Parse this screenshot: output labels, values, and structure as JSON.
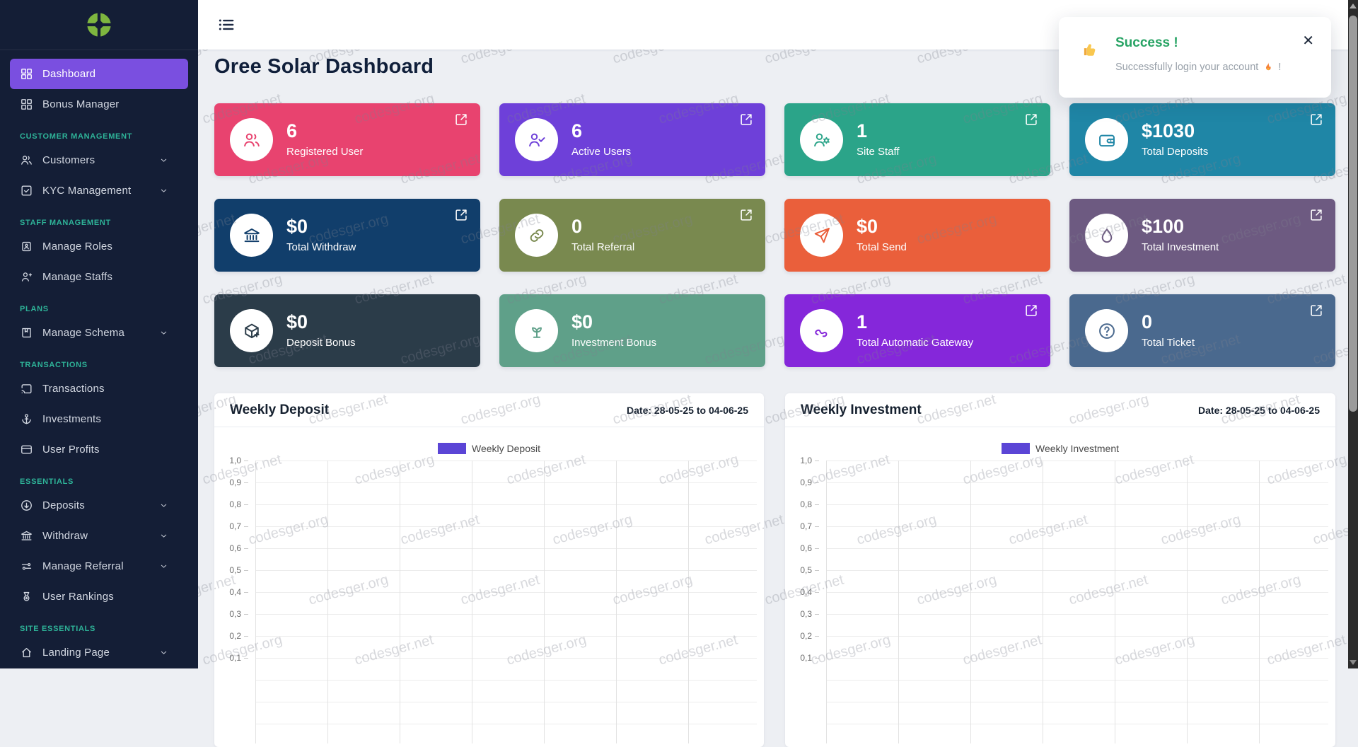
{
  "app": {
    "page_title": "Oree Solar Dashboard"
  },
  "topbar": {
    "menu_icon": "list-icon"
  },
  "toast": {
    "emoji_icon": "thumbs-up-icon",
    "title": "Success !",
    "message_prefix": "Successfully login your account",
    "fire_icon": "fire-icon",
    "message_suffix": "!",
    "close_glyph": "✕",
    "accent_color": "#27A364"
  },
  "sidebar": {
    "logo_icon": "oree-solar-logo",
    "colors": {
      "background": "#141E36",
      "active": "#7A4FE0",
      "section": "#2EB398",
      "text": "#D3D8E2"
    },
    "groups": [
      {
        "header": null,
        "items": [
          {
            "label": "Dashboard",
            "icon": "grid-icon",
            "active": true,
            "chevron": false
          },
          {
            "label": "Bonus Manager",
            "icon": "grid-icon",
            "active": false,
            "chevron": false
          }
        ]
      },
      {
        "header": "CUSTOMER MANAGEMENT",
        "items": [
          {
            "label": "Customers",
            "icon": "users-icon",
            "active": false,
            "chevron": true
          },
          {
            "label": "KYC Management",
            "icon": "check-square-icon",
            "active": false,
            "chevron": true
          }
        ]
      },
      {
        "header": "STAFF MANAGEMENT",
        "items": [
          {
            "label": "Manage Roles",
            "icon": "id-badge-icon",
            "active": false,
            "chevron": false
          },
          {
            "label": "Manage Staffs",
            "icon": "user-plus-icon",
            "active": false,
            "chevron": false
          }
        ]
      },
      {
        "header": "PLANS",
        "items": [
          {
            "label": "Manage Schema",
            "icon": "book-icon",
            "active": false,
            "chevron": true
          }
        ]
      },
      {
        "header": "TRANSACTIONS",
        "items": [
          {
            "label": "Transactions",
            "icon": "cast-icon",
            "active": false,
            "chevron": false
          },
          {
            "label": "Investments",
            "icon": "anchor-icon",
            "active": false,
            "chevron": false
          },
          {
            "label": "User Profits",
            "icon": "credit-card-icon",
            "active": false,
            "chevron": false
          }
        ]
      },
      {
        "header": "ESSENTIALS",
        "items": [
          {
            "label": "Deposits",
            "icon": "arrow-down-circle-icon",
            "active": false,
            "chevron": true
          },
          {
            "label": "Withdraw",
            "icon": "bank-icon",
            "active": false,
            "chevron": true
          },
          {
            "label": "Manage Referral",
            "icon": "sliders-icon",
            "active": false,
            "chevron": true
          },
          {
            "label": "User Rankings",
            "icon": "medal-icon",
            "active": false,
            "chevron": false
          }
        ]
      },
      {
        "header": "SITE ESSENTIALS",
        "items": [
          {
            "label": "Landing Page",
            "icon": "home-icon",
            "active": false,
            "chevron": true
          }
        ]
      }
    ]
  },
  "stat_cards": [
    {
      "value": "6",
      "label": "Registered User",
      "icon": "users-icon",
      "color": "#E8436F",
      "external_link": true
    },
    {
      "value": "6",
      "label": "Active Users",
      "icon": "user-check-icon",
      "color": "#6E40D9",
      "external_link": true
    },
    {
      "value": "1",
      "label": "Site Staff",
      "icon": "user-gear-icon",
      "color": "#2BA489",
      "external_link": true
    },
    {
      "value": "$1030",
      "label": "Total Deposits",
      "icon": "wallet-icon",
      "color": "#1F86A6",
      "external_link": true
    },
    {
      "value": "$0",
      "label": "Total Withdraw",
      "icon": "bank-icon",
      "color": "#113E6B",
      "external_link": true
    },
    {
      "value": "0",
      "label": "Total Referral",
      "icon": "link-icon",
      "color": "#79894F",
      "external_link": true
    },
    {
      "value": "$0",
      "label": "Total Send",
      "icon": "send-icon",
      "color": "#EA5F3B",
      "external_link": false
    },
    {
      "value": "$100",
      "label": "Total Investment",
      "icon": "droplet-icon",
      "color": "#6D5A81",
      "external_link": true
    },
    {
      "value": "$0",
      "label": "Deposit Bonus",
      "icon": "package-icon",
      "color": "#2B3C49",
      "external_link": false
    },
    {
      "value": "$0",
      "label": "Investment Bonus",
      "icon": "sprout-icon",
      "color": "#5FA089",
      "external_link": false
    },
    {
      "value": "1",
      "label": "Total Automatic Gateway",
      "icon": "route-icon",
      "color": "#8527DA",
      "external_link": true
    },
    {
      "value": "0",
      "label": "Total Ticket",
      "icon": "help-circle-icon",
      "color": "#4A698E",
      "external_link": true
    }
  ],
  "chart_data": [
    {
      "type": "line",
      "title": "Weekly Deposit",
      "date_range": "Date: 28-05-25 to 04-06-25",
      "legend": [
        {
          "name": "Weekly Deposit",
          "color": "#5B45D6"
        }
      ],
      "legend_position": "top-center",
      "grid": true,
      "ylim": [
        0,
        1
      ],
      "y_ticks": [
        "1,0",
        "0,9",
        "0,8",
        "0,7",
        "0,6",
        "0,5",
        "0,4",
        "0,3",
        "0,2",
        "0,1"
      ],
      "series": [
        {
          "name": "Weekly Deposit",
          "values": []
        }
      ]
    },
    {
      "type": "line",
      "title": "Weekly Investment",
      "date_range": "Date: 28-05-25 to 04-06-25",
      "legend": [
        {
          "name": "Weekly Investment",
          "color": "#5B45D6"
        }
      ],
      "legend_position": "top-center",
      "grid": true,
      "ylim": [
        0,
        1
      ],
      "y_ticks": [
        "1,0",
        "0,9",
        "0,8",
        "0,7",
        "0,6",
        "0,5",
        "0,4",
        "0,3",
        "0,2",
        "0,1"
      ],
      "series": [
        {
          "name": "Weekly Investment",
          "values": []
        }
      ]
    }
  ],
  "watermark": {
    "texts": [
      "codesger.org",
      "codesger.net"
    ]
  }
}
